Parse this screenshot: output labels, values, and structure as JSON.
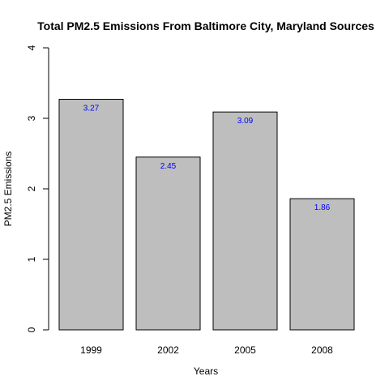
{
  "chart_data": {
    "type": "bar",
    "title": "Total PM2.5 Emissions From Baltimore City, Maryland Sources",
    "xlabel": "Years",
    "ylabel": "PM2.5 Emissions",
    "categories": [
      "1999",
      "2002",
      "2005",
      "2008"
    ],
    "values": [
      3.27,
      2.45,
      3.09,
      1.86
    ],
    "data_labels": [
      "3.27",
      "2.45",
      "3.09",
      "1.86"
    ],
    "ylim": [
      0,
      4
    ],
    "yticks": [
      "0",
      "1",
      "2",
      "3",
      "4"
    ],
    "grid": false,
    "legend": "none",
    "colors": {
      "bar_fill": "#bebebe",
      "bar_stroke": "#000000",
      "data_label": "#0000ff",
      "axis": "#000000"
    }
  }
}
